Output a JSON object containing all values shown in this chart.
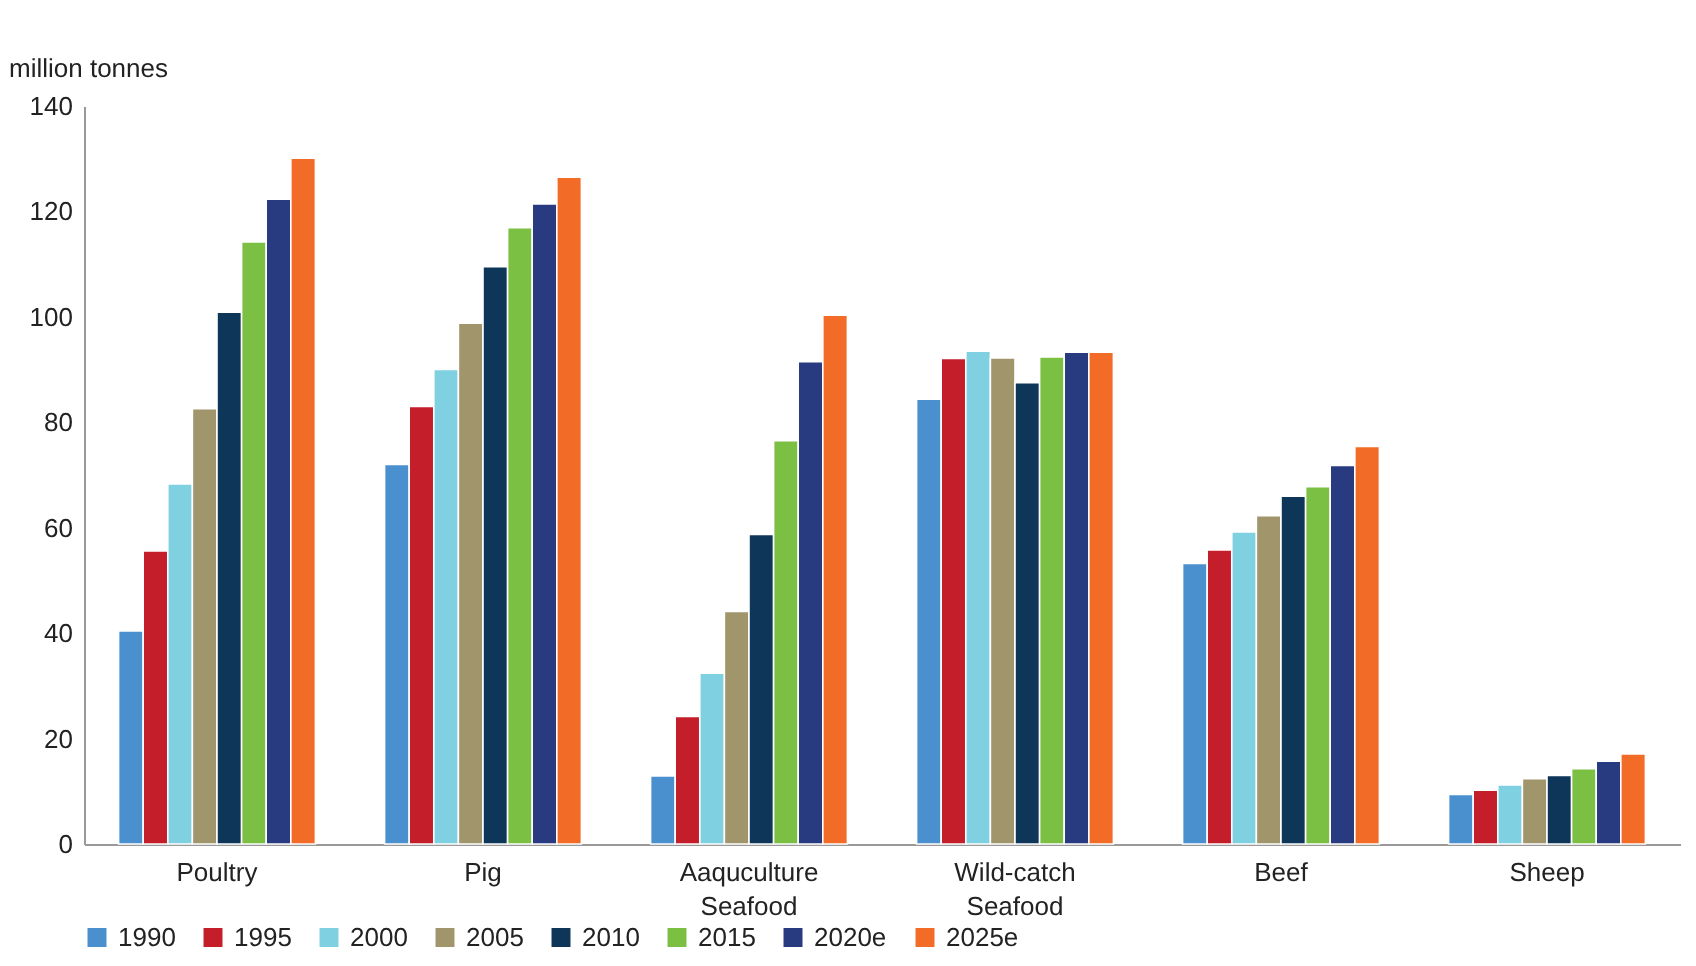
{
  "chart_data": {
    "type": "bar",
    "ylabel": "million tonnes",
    "categories": [
      "Poultry",
      "Pig",
      "Aaquculture Seafood",
      "Wild-catch Seafood",
      "Beef",
      "Sheep"
    ],
    "series": [
      {
        "name": "1990",
        "color": "#4a8fce",
        "values": [
          40.4,
          72.0,
          12.9,
          84.4,
          53.2,
          9.4
        ]
      },
      {
        "name": "1995",
        "color": "#c41e2a",
        "values": [
          55.6,
          83.0,
          24.2,
          92.1,
          55.8,
          10.2
        ]
      },
      {
        "name": "2000",
        "color": "#7fd0e0",
        "values": [
          68.3,
          90.0,
          32.4,
          93.5,
          59.2,
          11.2
        ]
      },
      {
        "name": "2005",
        "color": "#a0956b",
        "values": [
          82.6,
          98.8,
          44.1,
          92.2,
          62.3,
          12.4
        ]
      },
      {
        "name": "2010",
        "color": "#0e3658",
        "values": [
          100.9,
          109.5,
          58.7,
          87.5,
          66.0,
          13.0
        ]
      },
      {
        "name": "2015",
        "color": "#7bc043",
        "values": [
          114.2,
          116.9,
          76.5,
          92.4,
          67.8,
          14.3
        ]
      },
      {
        "name": "2020e",
        "color": "#283a80",
        "values": [
          122.3,
          121.4,
          91.5,
          93.3,
          71.8,
          15.7
        ]
      },
      {
        "name": "2025e",
        "color": "#f26c27",
        "values": [
          130.1,
          126.5,
          100.3,
          93.3,
          75.4,
          17.1
        ]
      }
    ],
    "ylim": [
      0,
      140
    ],
    "yticks": [
      0,
      20,
      40,
      60,
      80,
      100,
      120,
      140
    ],
    "grid": false,
    "legend": "bottom"
  }
}
